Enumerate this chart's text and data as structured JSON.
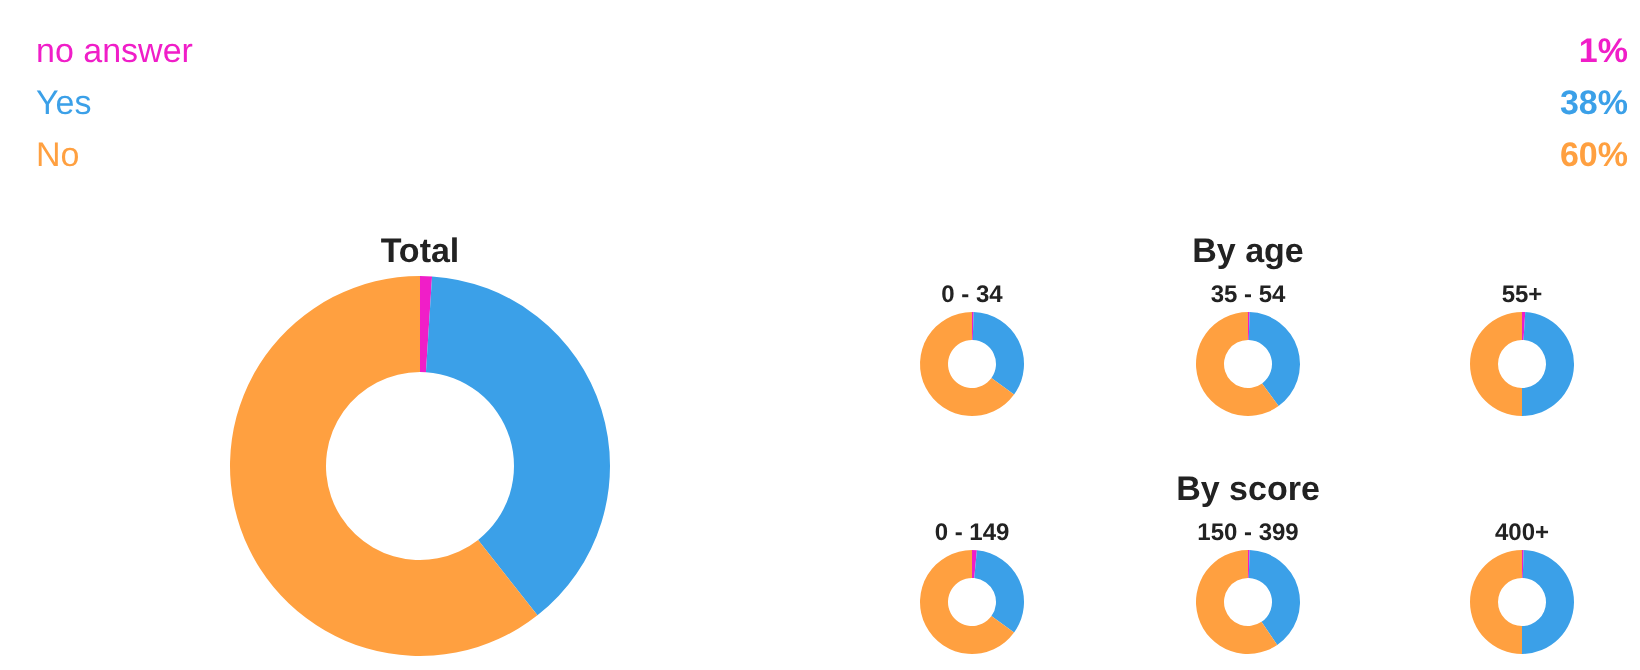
{
  "chart_data": [
    {
      "type": "other",
      "annotations": [
        "no answer",
        "1%",
        "Yes",
        "38%",
        "No",
        "60%"
      ]
    },
    {
      "type": "donut",
      "title": "Total",
      "categories": [
        null,
        null,
        null
      ],
      "values": [
        1,
        38,
        60
      ],
      "colors": [
        "#f01ec8",
        "#3ba0e8",
        "#ffa040"
      ]
    },
    {
      "type": "donut",
      "title": "0 - 34",
      "annotations": [
        "By age"
      ],
      "categories": [
        null,
        null,
        null
      ],
      "values": [
        0.5,
        34.5,
        65
      ],
      "colors": [
        "#f01ec8",
        "#3ba0e8",
        "#ffa040"
      ]
    },
    {
      "type": "donut",
      "title": "35 - 54",
      "categories": [
        null,
        null,
        null
      ],
      "values": [
        0.5,
        39.5,
        60
      ],
      "colors": [
        "#f01ec8",
        "#3ba0e8",
        "#ffa040"
      ]
    },
    {
      "type": "donut",
      "title": "55+",
      "categories": [
        null,
        null,
        null
      ],
      "values": [
        1,
        49,
        50
      ],
      "colors": [
        "#f01ec8",
        "#3ba0e8",
        "#ffa040"
      ]
    },
    {
      "type": "donut",
      "title": "0 - 149",
      "annotations": [
        "By score"
      ],
      "categories": [
        null,
        null,
        null
      ],
      "values": [
        1.5,
        33.5,
        65
      ],
      "colors": [
        "#f01ec8",
        "#3ba0e8",
        "#ffa040"
      ]
    },
    {
      "type": "donut",
      "title": "150 - 399",
      "categories": [
        null,
        null,
        null
      ],
      "values": [
        0.5,
        40,
        59.5
      ],
      "colors": [
        "#f01ec8",
        "#3ba0e8",
        "#ffa040"
      ]
    },
    {
      "type": "donut",
      "title": "400+",
      "categories": [
        null,
        null,
        null
      ],
      "values": [
        0.5,
        49.5,
        50
      ],
      "colors": [
        "#f01ec8",
        "#3ba0e8",
        "#ffa040"
      ]
    }
  ]
}
